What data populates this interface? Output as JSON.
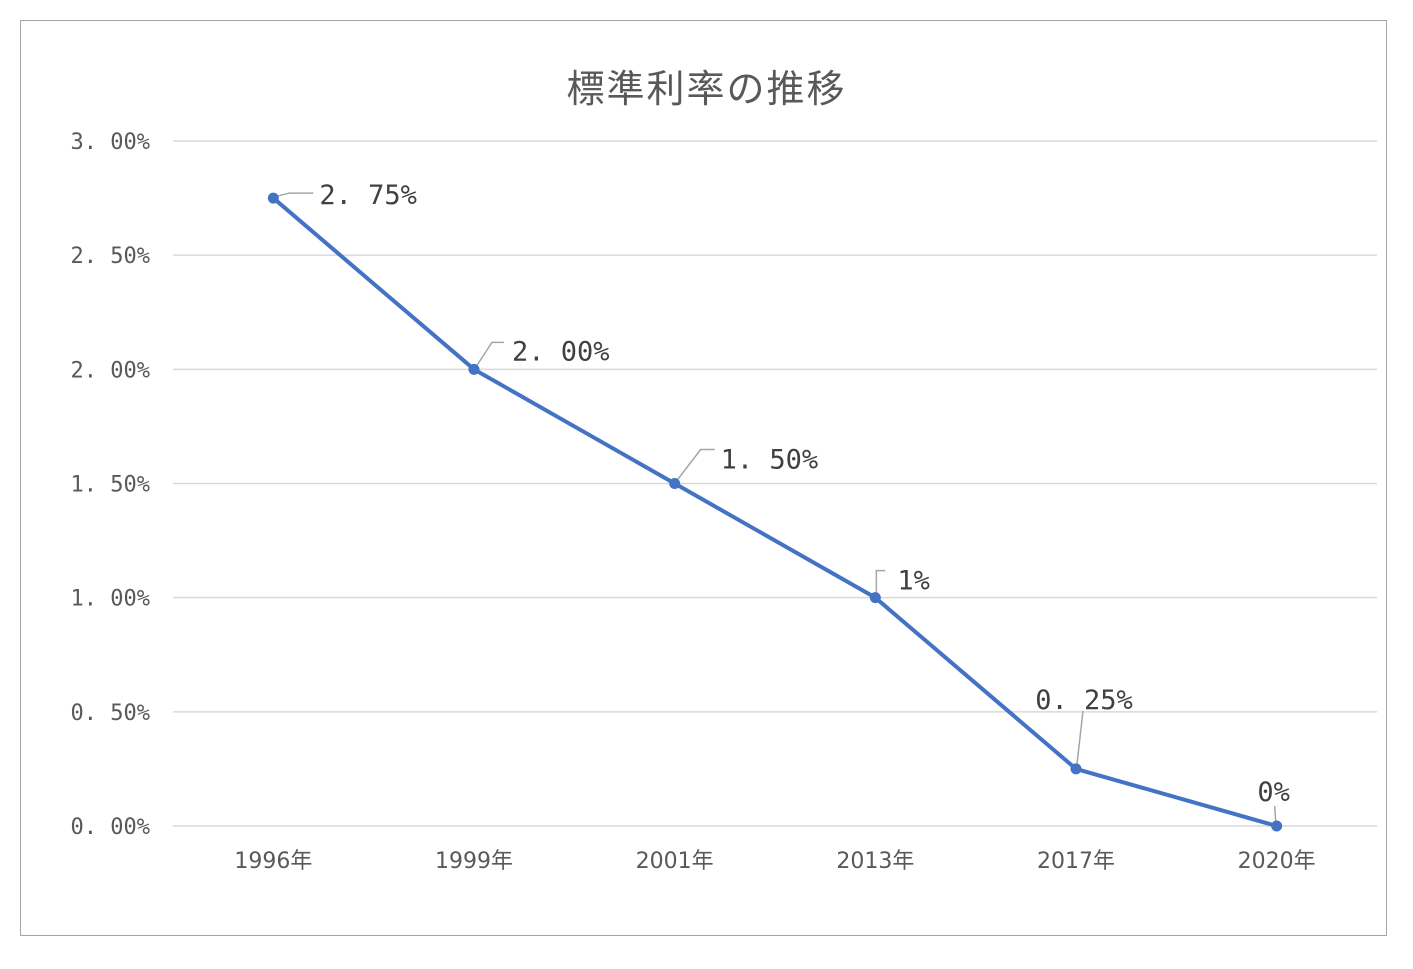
{
  "chart_data": {
    "type": "line",
    "title": "標準利率の推移",
    "categories": [
      "1996年",
      "1999年",
      "2001年",
      "2013年",
      "2017年",
      "2020年"
    ],
    "series": [
      {
        "values": [
          2.75,
          2.0,
          1.5,
          1.0,
          0.25,
          0.0
        ],
        "data_labels": [
          "2. 75%",
          "2. 00%",
          "1. 50%",
          "1%",
          "0. 25%",
          "0%"
        ]
      }
    ],
    "ylim": [
      0,
      3
    ],
    "y_ticks": [
      0,
      0.5,
      1.0,
      1.5,
      2.0,
      2.5,
      3.0
    ],
    "y_tick_labels": [
      "0. 00%",
      "0. 50%",
      "1. 00%",
      "1. 50%",
      "2. 00%",
      "2. 50%",
      "3. 00%"
    ],
    "grid": true,
    "legend": "none",
    "colors": {
      "line": "#4472c4",
      "grid": "#d9d9d9",
      "leader": "#a6a6a6",
      "text": "#595959"
    }
  }
}
